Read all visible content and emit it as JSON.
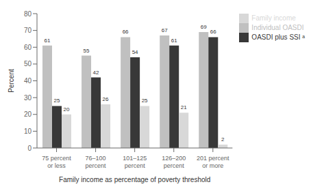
{
  "chart_data": {
    "type": "bar",
    "categories": [
      "75 percent\nor less",
      "76–100\npercent",
      "101–125\npercent",
      "126–200\npercent",
      "201 percent\nor more"
    ],
    "series": [
      {
        "name": "Individual OASDI",
        "color": "#c0c0c0",
        "values": [
          61,
          55,
          66,
          67,
          69
        ]
      },
      {
        "name": "OASDI plus SSI ᵃ",
        "color": "#383838",
        "values": [
          25,
          42,
          54,
          61,
          66
        ]
      },
      {
        "name": "Family income",
        "color": "#d8d8d8",
        "values": [
          20,
          26,
          25,
          21,
          2
        ]
      }
    ],
    "xlabel": "Family income as percentage of poverty threshold",
    "ylabel": "Percent",
    "ylim": [
      0,
      80
    ],
    "yticks": [
      0,
      10,
      20,
      30,
      40,
      50,
      60,
      70,
      80
    ],
    "grid": false,
    "legend": "right",
    "data_labels": true
  }
}
